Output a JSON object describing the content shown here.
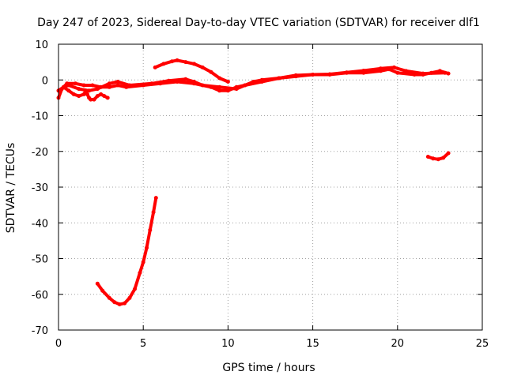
{
  "chart_data": {
    "type": "scatter",
    "title": "Day 247 of 2023, Sidereal Day-to-day VTEC variation (SDTVAR) for receiver dlf1",
    "xlabel": "GPS time / hours",
    "ylabel": "SDTVAR / TECUs",
    "xlim": [
      0,
      25
    ],
    "ylim": [
      -70,
      10
    ],
    "xticks": [
      0,
      5,
      10,
      15,
      20,
      25
    ],
    "yticks": [
      -70,
      -60,
      -50,
      -40,
      -30,
      -20,
      -10,
      0,
      10
    ],
    "grid": true,
    "series_color": "#ff0000",
    "series": [
      {
        "name": "main-trace-a",
        "points": [
          [
            0,
            -5
          ],
          [
            0.2,
            -2.5
          ],
          [
            0.5,
            -1
          ],
          [
            1,
            -1
          ],
          [
            1.5,
            -1.5
          ],
          [
            2,
            -1.5
          ],
          [
            2.5,
            -2
          ],
          [
            3,
            -2
          ],
          [
            3.5,
            -1.5
          ],
          [
            4,
            -2
          ],
          [
            5,
            -1.5
          ],
          [
            6,
            -1
          ],
          [
            7,
            -0.5
          ],
          [
            8,
            -1
          ],
          [
            9,
            -2
          ],
          [
            9.5,
            -3
          ],
          [
            10,
            -3
          ],
          [
            10.5,
            -2
          ],
          [
            11,
            -1.5
          ],
          [
            11.5,
            -0.5
          ],
          [
            12,
            0
          ],
          [
            13,
            0.5
          ],
          [
            14,
            1
          ],
          [
            15,
            1.5
          ],
          [
            16,
            1.5
          ],
          [
            17,
            2
          ],
          [
            18,
            2
          ],
          [
            19,
            2.5
          ],
          [
            19.5,
            3
          ],
          [
            20,
            2
          ],
          [
            21,
            1.5
          ],
          [
            21.5,
            1.5
          ],
          [
            22,
            2
          ],
          [
            22.5,
            2.5
          ],
          [
            23,
            1.8
          ]
        ]
      },
      {
        "name": "main-trace-b",
        "points": [
          [
            0,
            -3
          ],
          [
            0.3,
            -2
          ],
          [
            0.6,
            -1.5
          ],
          [
            1.2,
            -2.5
          ],
          [
            1.8,
            -3
          ],
          [
            2.3,
            -2.5
          ],
          [
            3,
            -1
          ],
          [
            3.5,
            -0.5
          ],
          [
            4.2,
            -1.5
          ],
          [
            5.5,
            -1
          ],
          [
            6.5,
            -0.2
          ],
          [
            7.5,
            0.2
          ],
          [
            8,
            -0.5
          ],
          [
            8.5,
            -1.5
          ],
          [
            9.5,
            -2
          ],
          [
            10.5,
            -2.5
          ],
          [
            11,
            -1.5
          ],
          [
            12,
            -0.5
          ],
          [
            13,
            0.5
          ],
          [
            14,
            1.3
          ],
          [
            15,
            1.5
          ],
          [
            16,
            1.6
          ],
          [
            17,
            2.1
          ],
          [
            18,
            2.6
          ],
          [
            19,
            3.2
          ],
          [
            19.8,
            3.5
          ],
          [
            20.5,
            2.5
          ],
          [
            21.5,
            1.8
          ],
          [
            22.8,
            2
          ]
        ]
      },
      {
        "name": "early-loops",
        "points": [
          [
            0.3,
            -2
          ],
          [
            0.6,
            -3
          ],
          [
            0.9,
            -4
          ],
          [
            1.2,
            -4.5
          ],
          [
            1.5,
            -4
          ],
          [
            1.6,
            -3
          ],
          [
            1.7,
            -4
          ],
          [
            1.8,
            -5
          ],
          [
            1.9,
            -5.5
          ],
          [
            2.1,
            -5.5
          ],
          [
            2.3,
            -4.5
          ],
          [
            2.5,
            -4
          ],
          [
            2.7,
            -4.5
          ],
          [
            2.9,
            -5
          ]
        ]
      },
      {
        "name": "hump-segment",
        "points": [
          [
            5.7,
            3.5
          ],
          [
            6.2,
            4.5
          ],
          [
            6.7,
            5.2
          ],
          [
            7,
            5.5
          ],
          [
            7.5,
            5
          ],
          [
            8,
            4.5
          ],
          [
            8.5,
            3.5
          ],
          [
            9,
            2.2
          ],
          [
            9.5,
            0.5
          ],
          [
            10,
            -0.5
          ]
        ]
      },
      {
        "name": "dip-curve",
        "points": [
          [
            2.3,
            -57
          ],
          [
            2.6,
            -59
          ],
          [
            3,
            -61
          ],
          [
            3.3,
            -62.2
          ],
          [
            3.6,
            -62.8
          ],
          [
            3.9,
            -62.5
          ],
          [
            4.2,
            -61
          ],
          [
            4.5,
            -58.5
          ],
          [
            4.8,
            -54
          ],
          [
            5,
            -51
          ],
          [
            5.2,
            -47
          ],
          [
            5.4,
            -42
          ],
          [
            5.6,
            -37
          ],
          [
            5.75,
            -33
          ]
        ]
      },
      {
        "name": "late-segment",
        "points": [
          [
            21.8,
            -21.5
          ],
          [
            22.1,
            -22
          ],
          [
            22.4,
            -22.2
          ],
          [
            22.7,
            -21.8
          ],
          [
            23,
            -20.5
          ]
        ]
      }
    ]
  }
}
